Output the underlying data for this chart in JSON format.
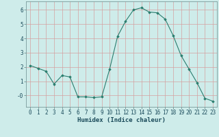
{
  "x": [
    0,
    1,
    2,
    3,
    4,
    5,
    6,
    7,
    8,
    9,
    10,
    11,
    12,
    13,
    14,
    15,
    16,
    17,
    18,
    19,
    20,
    21,
    22,
    23
  ],
  "y": [
    2.1,
    1.9,
    1.7,
    0.8,
    1.4,
    1.3,
    -0.1,
    -0.1,
    -0.15,
    -0.1,
    1.85,
    4.15,
    5.2,
    6.0,
    6.15,
    5.85,
    5.8,
    5.35,
    4.2,
    2.8,
    1.85,
    0.9,
    -0.2,
    -0.4
  ],
  "line_color": "#2a7d6e",
  "marker": "D",
  "marker_size": 1.8,
  "bg_color": "#ceecea",
  "grid_color": "#d4a0a0",
  "xlabel": "Humidex (Indice chaleur)",
  "xlim": [
    -0.5,
    23.5
  ],
  "ylim": [
    -0.8,
    6.6
  ],
  "yticks": [
    0,
    1,
    2,
    3,
    4,
    5,
    6
  ],
  "ytick_labels": [
    "-0",
    "1",
    "2",
    "3",
    "4",
    "5",
    "6"
  ],
  "xticks": [
    0,
    1,
    2,
    3,
    4,
    5,
    6,
    7,
    8,
    9,
    10,
    11,
    12,
    13,
    14,
    15,
    16,
    17,
    18,
    19,
    20,
    21,
    22,
    23
  ],
  "font_size_label": 6.5,
  "font_size_tick": 5.5
}
